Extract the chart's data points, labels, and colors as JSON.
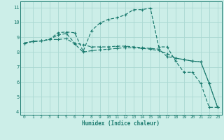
{
  "xlabel": "Humidex (Indice chaleur)",
  "background_color": "#cceee8",
  "grid_color": "#aad8d2",
  "line_color": "#1a7a6e",
  "xlim": [
    -0.5,
    23.5
  ],
  "ylim": [
    3.8,
    11.4
  ],
  "xticks": [
    0,
    1,
    2,
    3,
    4,
    5,
    6,
    7,
    8,
    9,
    10,
    11,
    12,
    13,
    14,
    15,
    16,
    17,
    18,
    19,
    20,
    21,
    22,
    23
  ],
  "yticks": [
    4,
    5,
    6,
    7,
    8,
    9,
    10,
    11
  ],
  "series": [
    {
      "x": [
        0,
        1,
        2,
        3,
        4,
        5,
        6,
        7,
        8,
        9,
        10,
        11,
        12,
        13,
        14,
        15,
        16,
        17,
        18,
        19,
        20,
        21,
        22,
        23
      ],
      "y": [
        8.6,
        8.72,
        8.75,
        8.85,
        9.3,
        9.35,
        9.3,
        8.05,
        9.45,
        9.95,
        10.2,
        10.3,
        10.5,
        10.85,
        10.85,
        10.95,
        8.35,
        8.35,
        7.4,
        6.65,
        6.65,
        5.9,
        4.3,
        4.3
      ]
    },
    {
      "x": [
        0,
        1,
        2,
        3,
        4,
        5,
        6,
        7,
        8,
        9,
        10,
        11,
        12,
        13,
        14,
        15,
        16,
        17,
        18,
        19,
        20,
        21,
        22,
        23
      ],
      "y": [
        8.6,
        8.72,
        8.75,
        8.85,
        9.15,
        9.25,
        8.6,
        8.5,
        8.35,
        8.35,
        8.35,
        8.4,
        8.4,
        8.35,
        8.3,
        8.25,
        8.2,
        7.7,
        7.6,
        7.5,
        7.4,
        7.35,
        5.9,
        4.3
      ]
    },
    {
      "x": [
        0,
        1,
        2,
        3,
        4,
        5,
        6,
        7,
        8,
        9,
        10,
        11,
        12,
        13,
        14,
        15,
        16,
        17,
        18,
        19,
        20,
        21,
        22,
        23
      ],
      "y": [
        8.6,
        8.72,
        8.75,
        8.85,
        8.85,
        8.9,
        8.55,
        8.0,
        8.1,
        8.15,
        8.2,
        8.25,
        8.3,
        8.3,
        8.25,
        8.2,
        8.1,
        7.9,
        7.6,
        7.5,
        7.4,
        7.35,
        5.9,
        4.3
      ]
    }
  ]
}
